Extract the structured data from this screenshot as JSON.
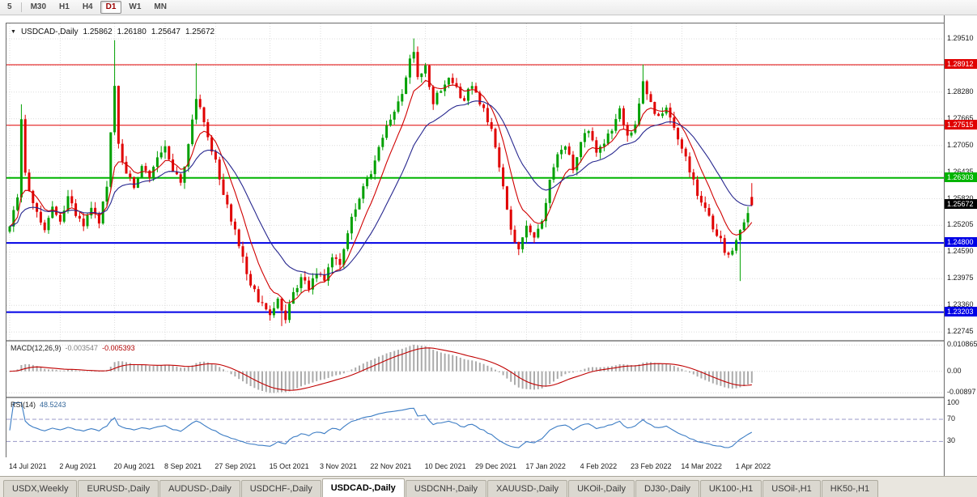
{
  "toolbar": {
    "timeframes": [
      {
        "label": "5",
        "active": false
      },
      {
        "label": "M30",
        "active": false
      },
      {
        "label": "H1",
        "active": false
      },
      {
        "label": "H4",
        "active": false
      },
      {
        "label": "D1",
        "active": true
      },
      {
        "label": "W1",
        "active": false
      },
      {
        "label": "MN",
        "active": false
      }
    ]
  },
  "chart": {
    "symbol_title": "USDCAD-,Daily",
    "ohlc": {
      "open": "1.25862",
      "high": "1.26180",
      "low": "1.25647",
      "close": "1.25672"
    },
    "grid_labels": [
      "1.29510",
      "1.28280",
      "1.27665",
      "1.27050",
      "1.26435",
      "1.25820",
      "1.25205",
      "1.24590",
      "1.23975",
      "1.23360",
      "1.22745"
    ],
    "current_price": {
      "text": "1.25672",
      "bg": "#000000"
    }
  },
  "macd_panel": {
    "name": "MACD(12,26,9)",
    "main": "-0.003547",
    "signal": "-0.005393"
  },
  "rsi_panel": {
    "name": "RSI(14)",
    "value": "48.5243"
  },
  "tabs": [
    {
      "label": "USDX,Weekly",
      "active": false
    },
    {
      "label": "EURUSD-,Daily",
      "active": false
    },
    {
      "label": "AUDUSD-,Daily",
      "active": false
    },
    {
      "label": "USDCHF-,Daily",
      "active": false
    },
    {
      "label": "USDCAD-,Daily",
      "active": true
    },
    {
      "label": "USDCNH-,Daily",
      "active": false
    },
    {
      "label": "XAUUSD-,Daily",
      "active": false
    },
    {
      "label": "UKOil-,Daily",
      "active": false
    },
    {
      "label": "DJ30-,Daily",
      "active": false
    },
    {
      "label": "UK100-,H1",
      "active": false
    },
    {
      "label": "USOil-,H1",
      "active": false
    },
    {
      "label": "HK50-,H1",
      "active": false
    }
  ],
  "chart_data": {
    "type": "candlestick",
    "symbol": "USDCAD-",
    "timeframe": "Daily",
    "candles": 192,
    "x_step": 4.8,
    "ylim": [
      1.2256,
      1.29865
    ],
    "up_color": "#00A000",
    "down_color": "#E00000",
    "grid": {
      "top_price": 1.2951,
      "step": 0.00615,
      "count": 12,
      "color": "#DCDCDC"
    },
    "last_candle": {
      "open": 1.25862,
      "high": 1.2618,
      "low": 1.25647,
      "close": 1.25672
    },
    "levels": [
      {
        "price": 1.28912,
        "label": "1.28912",
        "color": "#E00000",
        "width": 1
      },
      {
        "price": 1.27515,
        "label": "1.27515",
        "color": "#E00000",
        "width": 1
      },
      {
        "price": 1.26303,
        "label": "1.26303",
        "color": "#00B400",
        "width": 2
      },
      {
        "price": 1.248,
        "label": "1.24800",
        "color": "#0000E6",
        "width": 2
      },
      {
        "price": 1.23203,
        "label": "1.23203",
        "color": "#0000E6",
        "width": 2
      }
    ],
    "moving_averages": [
      {
        "period": 8,
        "color": "#D00000"
      },
      {
        "period": 21,
        "color": "#26268E"
      }
    ],
    "close_anchors": [
      [
        0,
        1.252
      ],
      [
        2,
        1.2585
      ],
      [
        3,
        1.2768
      ],
      [
        4,
        1.265
      ],
      [
        6,
        1.2565
      ],
      [
        9,
        1.2515
      ],
      [
        11,
        1.256
      ],
      [
        13,
        1.2535
      ],
      [
        15,
        1.258
      ],
      [
        17,
        1.255
      ],
      [
        19,
        1.2515
      ],
      [
        21,
        1.2555
      ],
      [
        23,
        1.2525
      ],
      [
        25,
        1.2615
      ],
      [
        27,
        1.2845
      ],
      [
        28,
        1.2705
      ],
      [
        30,
        1.2645
      ],
      [
        32,
        1.2605
      ],
      [
        34,
        1.2665
      ],
      [
        36,
        1.2625
      ],
      [
        38,
        1.268
      ],
      [
        40,
        1.27
      ],
      [
        42,
        1.2645
      ],
      [
        44,
        1.2615
      ],
      [
        46,
        1.2705
      ],
      [
        48,
        1.2815
      ],
      [
        50,
        1.2765
      ],
      [
        53,
        1.2665
      ],
      [
        55,
        1.2595
      ],
      [
        57,
        1.2535
      ],
      [
        59,
        1.2475
      ],
      [
        61,
        1.2405
      ],
      [
        63,
        1.2365
      ],
      [
        65,
        1.2335
      ],
      [
        67,
        1.2315
      ],
      [
        69,
        1.2345
      ],
      [
        71,
        1.2305
      ],
      [
        73,
        1.2365
      ],
      [
        75,
        1.2395
      ],
      [
        77,
        1.2375
      ],
      [
        79,
        1.2415
      ],
      [
        81,
        1.24
      ],
      [
        83,
        1.2445
      ],
      [
        85,
        1.2435
      ],
      [
        87,
        1.2505
      ],
      [
        89,
        1.2565
      ],
      [
        91,
        1.2605
      ],
      [
        93,
        1.2645
      ],
      [
        95,
        1.2705
      ],
      [
        97,
        1.2745
      ],
      [
        99,
        1.2775
      ],
      [
        101,
        1.2825
      ],
      [
        103,
        1.2905
      ],
      [
        104,
        1.2925
      ],
      [
        105,
        1.2865
      ],
      [
        107,
        1.2885
      ],
      [
        109,
        1.2805
      ],
      [
        111,
        1.2835
      ],
      [
        113,
        1.2865
      ],
      [
        115,
        1.284
      ],
      [
        117,
        1.2805
      ],
      [
        119,
        1.285
      ],
      [
        121,
        1.2805
      ],
      [
        123,
        1.2765
      ],
      [
        125,
        1.2705
      ],
      [
        127,
        1.2605
      ],
      [
        129,
        1.2505
      ],
      [
        131,
        1.2465
      ],
      [
        133,
        1.2525
      ],
      [
        135,
        1.2485
      ],
      [
        137,
        1.2535
      ],
      [
        139,
        1.2625
      ],
      [
        141,
        1.269
      ],
      [
        143,
        1.27
      ],
      [
        145,
        1.2655
      ],
      [
        147,
        1.2705
      ],
      [
        149,
        1.2745
      ],
      [
        151,
        1.2695
      ],
      [
        153,
        1.2715
      ],
      [
        155,
        1.2745
      ],
      [
        157,
        1.2785
      ],
      [
        159,
        1.2725
      ],
      [
        161,
        1.276
      ],
      [
        163,
        1.285
      ],
      [
        165,
        1.2805
      ],
      [
        167,
        1.2765
      ],
      [
        169,
        1.279
      ],
      [
        171,
        1.2745
      ],
      [
        173,
        1.2705
      ],
      [
        175,
        1.2645
      ],
      [
        177,
        1.2595
      ],
      [
        179,
        1.2555
      ],
      [
        181,
        1.2515
      ],
      [
        183,
        1.2485
      ],
      [
        185,
        1.2445
      ],
      [
        187,
        1.249
      ],
      [
        189,
        1.2525
      ],
      [
        191,
        1.25672
      ]
    ],
    "wick_overrides": [
      {
        "i": 3,
        "high": 1.28
      },
      {
        "i": 27,
        "high": 1.2948
      },
      {
        "i": 48,
        "high": 1.2895
      },
      {
        "i": 70,
        "low": 1.2288
      },
      {
        "i": 104,
        "high": 1.2952
      },
      {
        "i": 163,
        "high": 1.2892
      },
      {
        "i": 188,
        "low": 1.2392
      }
    ],
    "date_ticks": [
      {
        "i": 0,
        "label": "14 Jul 2021"
      },
      {
        "i": 13,
        "label": "2 Aug 2021"
      },
      {
        "i": 27,
        "label": "20 Aug 2021"
      },
      {
        "i": 40,
        "label": "8 Sep 2021"
      },
      {
        "i": 53,
        "label": "27 Sep 2021"
      },
      {
        "i": 67,
        "label": "15 Oct 2021"
      },
      {
        "i": 80,
        "label": "3 Nov 2021"
      },
      {
        "i": 93,
        "label": "22 Nov 2021"
      },
      {
        "i": 107,
        "label": "10 Dec 2021"
      },
      {
        "i": 120,
        "label": "29 Dec 2021"
      },
      {
        "i": 133,
        "label": "17 Jan 2022"
      },
      {
        "i": 147,
        "label": "4 Feb 2022"
      },
      {
        "i": 160,
        "label": "23 Feb 2022"
      },
      {
        "i": 173,
        "label": "14 Mar 2022"
      },
      {
        "i": 187,
        "label": "1 Apr 2022"
      }
    ],
    "macd": {
      "fast": 12,
      "slow": 26,
      "signal": 9,
      "ylim": [
        -0.0105,
        0.0123
      ],
      "hist_color": "#ABABAB",
      "signal_color": "#C00000",
      "axis": [
        {
          "v": 0.010865,
          "text": "0.010865"
        },
        {
          "v": 0,
          "text": "0.00"
        },
        {
          "v": -0.00897,
          "text": "-0.00897"
        }
      ]
    },
    "rsi": {
      "period": 14,
      "ylim": [
        0,
        108
      ],
      "color": "#3B7CC4",
      "level_color": "#9898C8",
      "levels": [
        70,
        30
      ],
      "axis": [
        {
          "v": 100,
          "text": "100"
        },
        {
          "v": 70,
          "text": "70"
        },
        {
          "v": 30,
          "text": "30"
        }
      ]
    }
  }
}
